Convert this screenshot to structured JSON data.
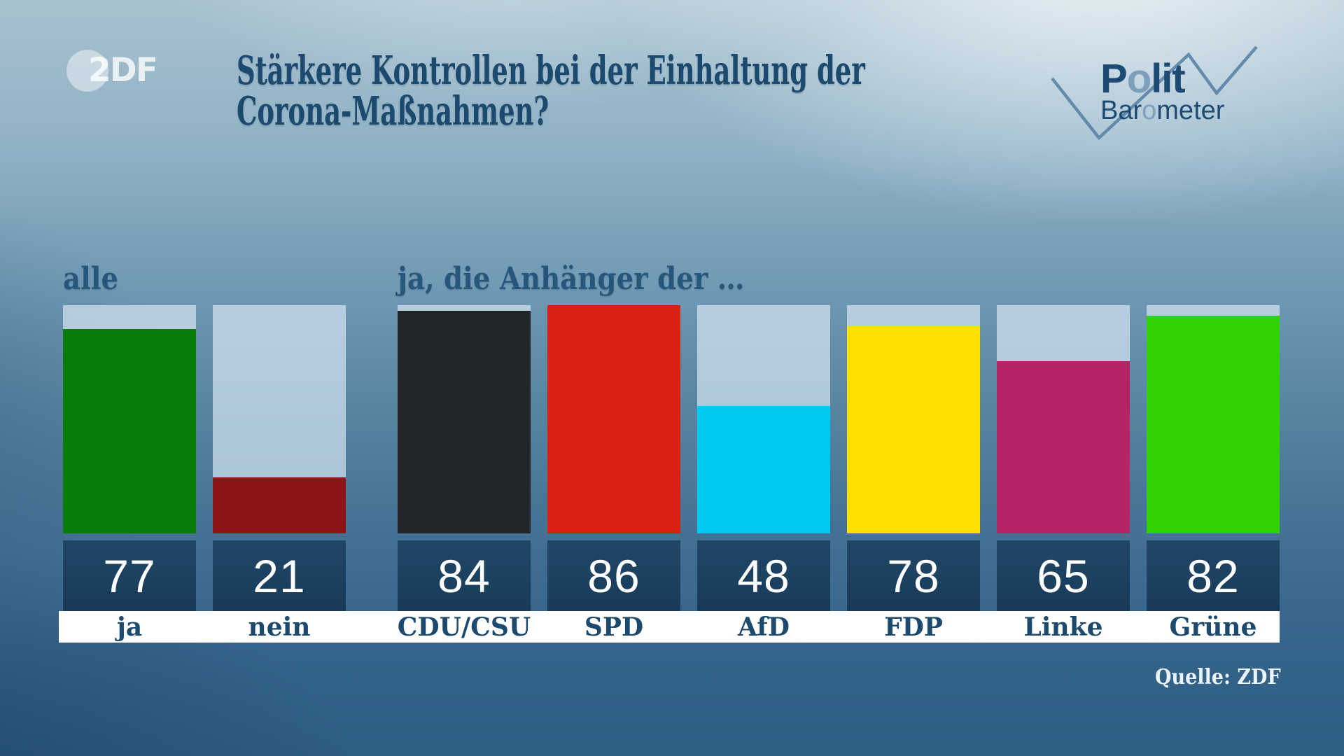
{
  "header": {
    "zdf_logo_text": "2DF",
    "title_line1": "Stärkere Kontrollen bei der Einhaltung der",
    "title_line2": "Corona-Maßnahmen?",
    "politbarometer": {
      "p1": "P",
      "o1": "o",
      "p2": "lit",
      "b1": "Bar",
      "o2": "o",
      "b2": "meter"
    }
  },
  "source": "Quelle: ZDF",
  "colors": {
    "title_text": "#1c4a6e",
    "label_text": "#1b4a6e",
    "value_box": "#1c4060",
    "value_text": "#ffffff",
    "axis_strip": "#ffffff",
    "bar_track": "#d2e3ee",
    "logo_dark": "#1d4a73",
    "logo_light_o": "#7d9fbc"
  },
  "chart_data": {
    "type": "bar",
    "title": "Stärkere Kontrollen bei der Einhaltung der Corona-Maßnahmen?",
    "categories": [
      "ja",
      "nein",
      "CDU/CSU",
      "SPD",
      "AfD",
      "FDP",
      "Linke",
      "Grüne"
    ],
    "values": [
      77,
      21,
      84,
      86,
      48,
      78,
      65,
      82
    ],
    "bar_colors": [
      "#0a7c0a",
      "#8d1515",
      "#232629",
      "#d92113",
      "#00c9f2",
      "#ffdf00",
      "#b52565",
      "#31d203"
    ],
    "unit": "percent",
    "ylim": [
      0,
      86
    ],
    "grid": false,
    "legend": "none",
    "groups": [
      {
        "label": "alle",
        "categories": [
          "ja",
          "nein"
        ]
      },
      {
        "label": "ja, die Anhänger der …",
        "categories": [
          "CDU/CSU",
          "SPD",
          "AfD",
          "FDP",
          "Linke",
          "Grüne"
        ]
      }
    ]
  }
}
